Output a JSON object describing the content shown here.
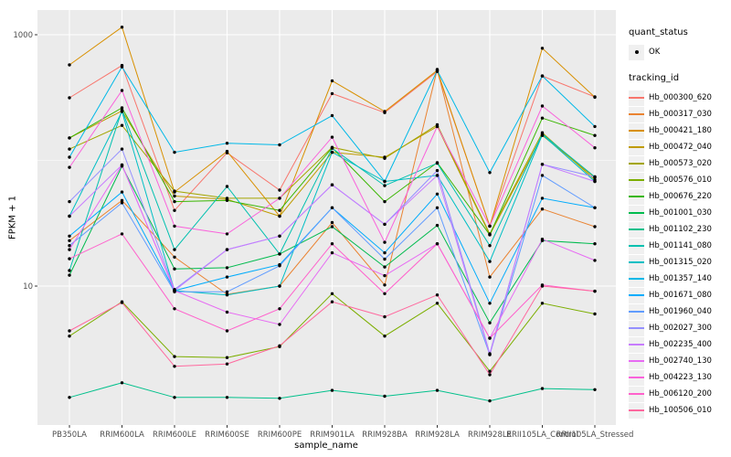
{
  "chart_data": {
    "type": "line",
    "title": "",
    "xlabel": "sample_name",
    "ylabel": "FPKM + 1",
    "yscale": "log10",
    "ytick_labels": [
      "1000",
      "10"
    ],
    "yticks": [
      1000,
      10
    ],
    "minor_break": 100,
    "ylim": [
      0.78,
      1600
    ],
    "panel_bg": "#EBEBEB",
    "grid_color": "#FFFFFF",
    "marker_color": "#000000",
    "legend_position": "right",
    "categories": [
      "PB350LA",
      "RRIM600LA",
      "RRIM600LE",
      "RRIM600SE",
      "RRIM600PE",
      "RRIM901LA",
      "RRIM928BA",
      "RRIM928LA",
      "RRIM928LE",
      "RRII105LA_Control",
      "RRII105LA_Stressed"
    ],
    "series": [
      {
        "name": "Hb_000300_620",
        "color": "#F8766D",
        "values": [
          315,
          570,
          40,
          115,
          58,
          340,
          240,
          510,
          30,
          470,
          320
        ]
      },
      {
        "name": "Hb_000317_030",
        "color": "#EA8331",
        "values": [
          23,
          48,
          17,
          8.6,
          10,
          32,
          10.2,
          530,
          11.8,
          41,
          29.7
        ]
      },
      {
        "name": "Hb_000421_180",
        "color": "#D89000",
        "values": [
          575,
          1150,
          56,
          118,
          36,
          430,
          245,
          520,
          30,
          780,
          318
        ]
      },
      {
        "name": "Hb_000472_040",
        "color": "#C09B00",
        "values": [
          151,
          248,
          52,
          49,
          36,
          116,
          106,
          186,
          25.6,
          158,
          73
        ]
      },
      {
        "name": "Hb_000573_020",
        "color": "#A3A500",
        "values": [
          123,
          190,
          57,
          50,
          50,
          127,
          104,
          192,
          26,
          166,
          70
        ]
      },
      {
        "name": "Hb_000576_010",
        "color": "#7CAE00",
        "values": [
          4.0,
          7.5,
          2.75,
          2.7,
          3.3,
          8.7,
          4.0,
          7.3,
          2.1,
          7.3,
          6.0
        ]
      },
      {
        "name": "Hb_000676_220",
        "color": "#39B600",
        "values": [
          151,
          262,
          47,
          48,
          40,
          126,
          47,
          96,
          25.6,
          217,
          158
        ]
      },
      {
        "name": "Hb_001001_030",
        "color": "#00BB4E",
        "values": [
          12.2,
          90,
          13.7,
          14,
          18,
          29.7,
          14.2,
          30.4,
          5.1,
          23,
          21.7
        ]
      },
      {
        "name": "Hb_001102_230",
        "color": "#00C08B",
        "values": [
          1.3,
          1.7,
          1.3,
          1.3,
          1.28,
          1.48,
          1.33,
          1.48,
          1.22,
          1.53,
          1.5
        ]
      },
      {
        "name": "Hb_001141_080",
        "color": "#00C0AF",
        "values": [
          13.3,
          252,
          19.5,
          62,
          18,
          125,
          63,
          95,
          21,
          162,
          74
        ]
      },
      {
        "name": "Hb_001315_020",
        "color": "#00BFC4",
        "values": [
          36,
          245,
          9.2,
          8.5,
          10,
          116,
          68,
          76,
          15.7,
          160,
          68
        ]
      },
      {
        "name": "Hb_001357_140",
        "color": "#00B8E7",
        "values": [
          106,
          555,
          116,
          137,
          133,
          227,
          68,
          520,
          80,
          470,
          186
        ]
      },
      {
        "name": "Hb_001671_080",
        "color": "#00ACFC",
        "values": [
          25,
          56,
          9.2,
          11.8,
          14.8,
          42,
          18.4,
          54,
          7.3,
          50,
          42
        ]
      },
      {
        "name": "Hb_001960_040",
        "color": "#619CFF",
        "values": [
          21,
          46,
          9.0,
          9.0,
          14.5,
          42,
          16.4,
          42,
          2.85,
          76,
          42
        ]
      },
      {
        "name": "Hb_002027_300",
        "color": "#9590FF",
        "values": [
          47,
          123,
          9.4,
          19.5,
          25,
          64,
          31,
          83,
          2.9,
          93,
          74
        ]
      },
      {
        "name": "Hb_002235_400",
        "color": "#C77CFF",
        "values": [
          36,
          92,
          9.2,
          19.5,
          25,
          64,
          31,
          76,
          2.85,
          93,
          68
        ]
      },
      {
        "name": "Hb_002740_130",
        "color": "#E76BF3",
        "values": [
          19.5,
          92,
          9.2,
          6.2,
          4.95,
          18.4,
          12.1,
          21.7,
          3.85,
          23.6,
          16
        ]
      },
      {
        "name": "Hb_004223_130",
        "color": "#FA62DB",
        "values": [
          88,
          360,
          30,
          26,
          50,
          153,
          22.3,
          186,
          30,
          271,
          126
        ]
      },
      {
        "name": "Hb_006120_200",
        "color": "#FF61CC",
        "values": [
          16.5,
          26,
          6.6,
          4.4,
          6.6,
          21.7,
          8.7,
          21.7,
          3.85,
          10.2,
          9.1
        ]
      },
      {
        "name": "Hb_100506_010",
        "color": "#FF689E",
        "values": [
          4.4,
          7.4,
          2.3,
          2.4,
          3.35,
          7.5,
          5.7,
          8.5,
          1.97,
          10,
          9.1
        ]
      }
    ]
  },
  "legend": {
    "quant_status_title": "quant_status",
    "quant_status_item": "OK",
    "tracking_id_title": "tracking_id"
  }
}
